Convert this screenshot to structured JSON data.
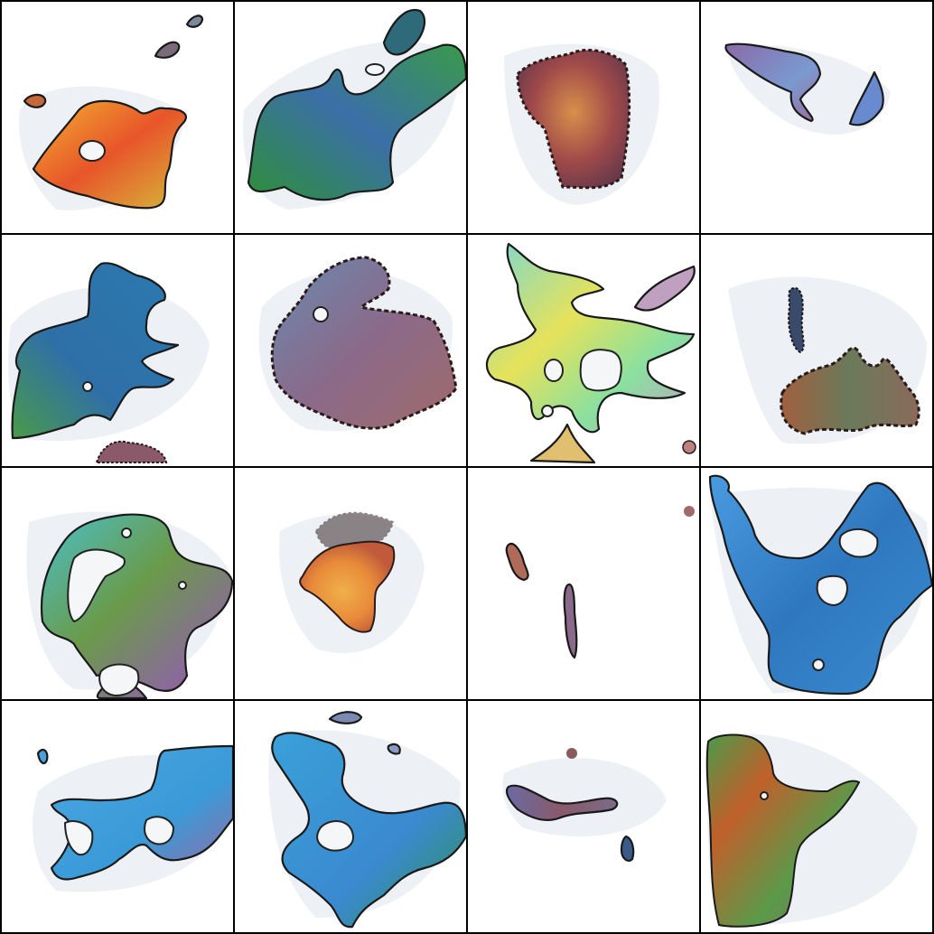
{
  "grid": {
    "rows": 4,
    "cols": 4,
    "background": "#000000",
    "tile_background": "#ffffff"
  },
  "tiles": [
    {
      "id": "r1c1",
      "palette": [
        "#f0a020",
        "#e8552a",
        "#d6c23a",
        "#5aa040"
      ]
    },
    {
      "id": "r1c2",
      "palette": [
        "#2f8f4a",
        "#3a6fa8",
        "#5a4a6a",
        "#4aa060"
      ]
    },
    {
      "id": "r1c3",
      "palette": [
        "#a04a4a",
        "#d07a40",
        "#3a2a2a"
      ]
    },
    {
      "id": "r1c4",
      "palette": [
        "#7a8ac0",
        "#9a6a9a",
        "#5a7ab0"
      ]
    },
    {
      "id": "r2c1",
      "palette": [
        "#2f6fa8",
        "#3a8fb0",
        "#4aa060",
        "#2a4a7a"
      ]
    },
    {
      "id": "r2c2",
      "palette": [
        "#8a5a7a",
        "#6a7aa0",
        "#a06a6a",
        "#3a2a2a"
      ]
    },
    {
      "id": "r2c3",
      "palette": [
        "#e6e25a",
        "#6ad0d0",
        "#a8e08a",
        "#c0a0c0"
      ]
    },
    {
      "id": "r2c4",
      "palette": [
        "#6a7a5a",
        "#a06040",
        "#3a4a6a"
      ]
    },
    {
      "id": "r3c1",
      "palette": [
        "#4ab0c0",
        "#6a9a4a",
        "#8a6a9a",
        "#c05a40"
      ]
    },
    {
      "id": "r3c2",
      "palette": [
        "#f0a040",
        "#e0702a",
        "#3a2a2a"
      ]
    },
    {
      "id": "r3c3",
      "palette": [
        "#b06a5a",
        "#8a7aa0"
      ]
    },
    {
      "id": "r3c4",
      "palette": [
        "#3a8ad0",
        "#2f78c0",
        "#4a9ae0"
      ]
    },
    {
      "id": "r4c1",
      "palette": [
        "#3a9ad8",
        "#4aa8e0",
        "#9a6aa0"
      ]
    },
    {
      "id": "r4c2",
      "palette": [
        "#3aa0d8",
        "#2f8f4a",
        "#8a6aa0"
      ]
    },
    {
      "id": "r4c3",
      "palette": [
        "#8a5a6a",
        "#6a6aa0",
        "#3a5a8a"
      ]
    },
    {
      "id": "r4c4",
      "palette": [
        "#c0602a",
        "#4a9a4a",
        "#8a6a5a",
        "#d04a3a"
      ]
    }
  ]
}
